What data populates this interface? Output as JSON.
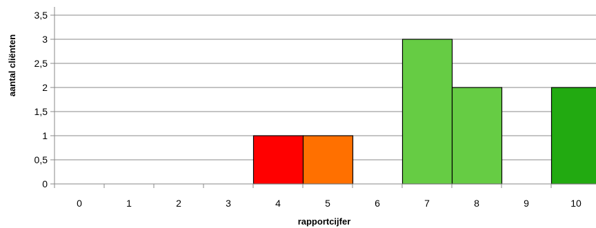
{
  "chart_data": {
    "type": "bar",
    "title": "",
    "xlabel": "rapportcijfer",
    "ylabel": "aantal cliënten",
    "categories": [
      "0",
      "1",
      "2",
      "3",
      "4",
      "5",
      "6",
      "7",
      "8",
      "9",
      "10"
    ],
    "values": [
      0,
      0,
      0,
      0,
      1,
      1,
      0,
      3,
      2,
      0,
      2
    ],
    "bar_colors": [
      "#ffffff",
      "#ffffff",
      "#ffffff",
      "#ffffff",
      "#ff0000",
      "#ff7000",
      "#ffffff",
      "#66cc44",
      "#66cc44",
      "#ffffff",
      "#22aa11"
    ],
    "ylim": [
      0,
      3.5
    ],
    "yticks": [
      "0",
      "0,5",
      "1",
      "1,5",
      "2",
      "2,5",
      "3",
      "3,5"
    ],
    "grid": true,
    "legend": "none"
  }
}
